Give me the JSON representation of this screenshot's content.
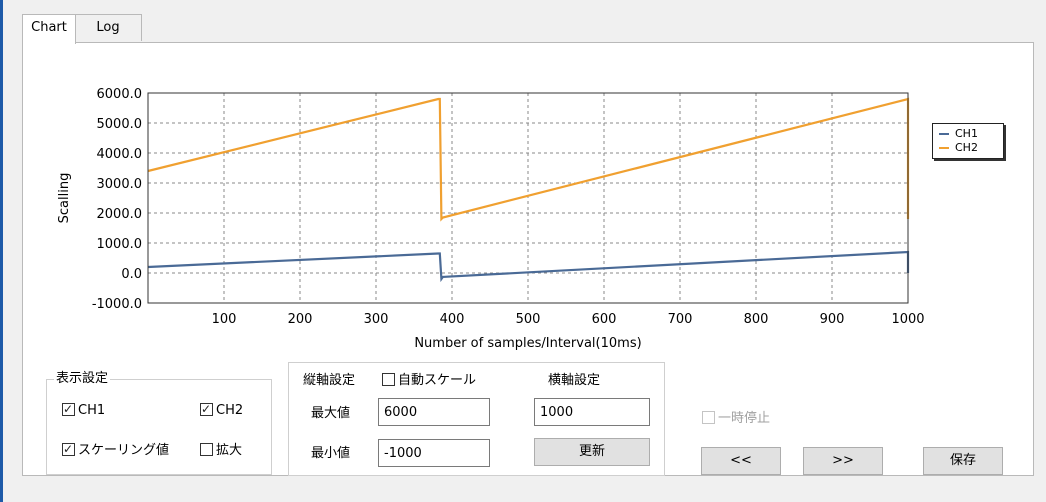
{
  "tabs": [
    {
      "label": "Chart",
      "active": true
    },
    {
      "label": "Log",
      "active": false
    }
  ],
  "chart_data": {
    "type": "line",
    "title": "",
    "xlabel": "Number of samples/Interval(10ms)",
    "ylabel": "Scalling",
    "xlim": [
      0,
      1000
    ],
    "ylim": [
      -1000,
      6000
    ],
    "x_ticks": [
      "100",
      "200",
      "300",
      "400",
      "500",
      "600",
      "700",
      "800",
      "900",
      "1000"
    ],
    "y_ticks": [
      "6000.0",
      "5000.0",
      "4000.0",
      "3000.0",
      "2000.0",
      "1000.0",
      "0.0",
      "-1000.0"
    ],
    "grid": true,
    "legend_placement": "right",
    "series": [
      {
        "name": "CH1",
        "color": "#4a6a96",
        "points": [
          [
            0,
            200
          ],
          [
            382,
            650
          ],
          [
            384,
            650
          ],
          [
            386,
            -200
          ],
          [
            388,
            -130
          ],
          [
            1000,
            700
          ],
          [
            1000,
            0
          ]
        ]
      },
      {
        "name": "CH2",
        "color": "#f0a030",
        "points": [
          [
            0,
            3400
          ],
          [
            382,
            5800
          ],
          [
            384,
            5800
          ],
          [
            386,
            1800
          ],
          [
            388,
            1850
          ],
          [
            1000,
            5800
          ],
          [
            1000,
            4100
          ],
          [
            1000,
            1800
          ]
        ]
      }
    ]
  },
  "display_settings": {
    "title": "表示設定",
    "ch1": {
      "label": "CH1",
      "checked": true
    },
    "ch2": {
      "label": "CH2",
      "checked": true
    },
    "scaling": {
      "label": "スケーリング値",
      "checked": true
    },
    "zoom": {
      "label": "拡大",
      "checked": false
    }
  },
  "vertical_axis": {
    "title": "縦軸設定",
    "auto_scale": {
      "label": "自動スケール",
      "checked": false
    },
    "max_label": "最大値",
    "max_value": "6000",
    "min_label": "最小値",
    "min_value": "-1000"
  },
  "horizontal_axis": {
    "title": "横軸設定",
    "value": "1000",
    "update_label": "更新"
  },
  "pause": {
    "label": "一時停止",
    "checked": false,
    "enabled": false
  },
  "buttons": {
    "prev": "<<",
    "next": ">>",
    "save": "保存"
  }
}
